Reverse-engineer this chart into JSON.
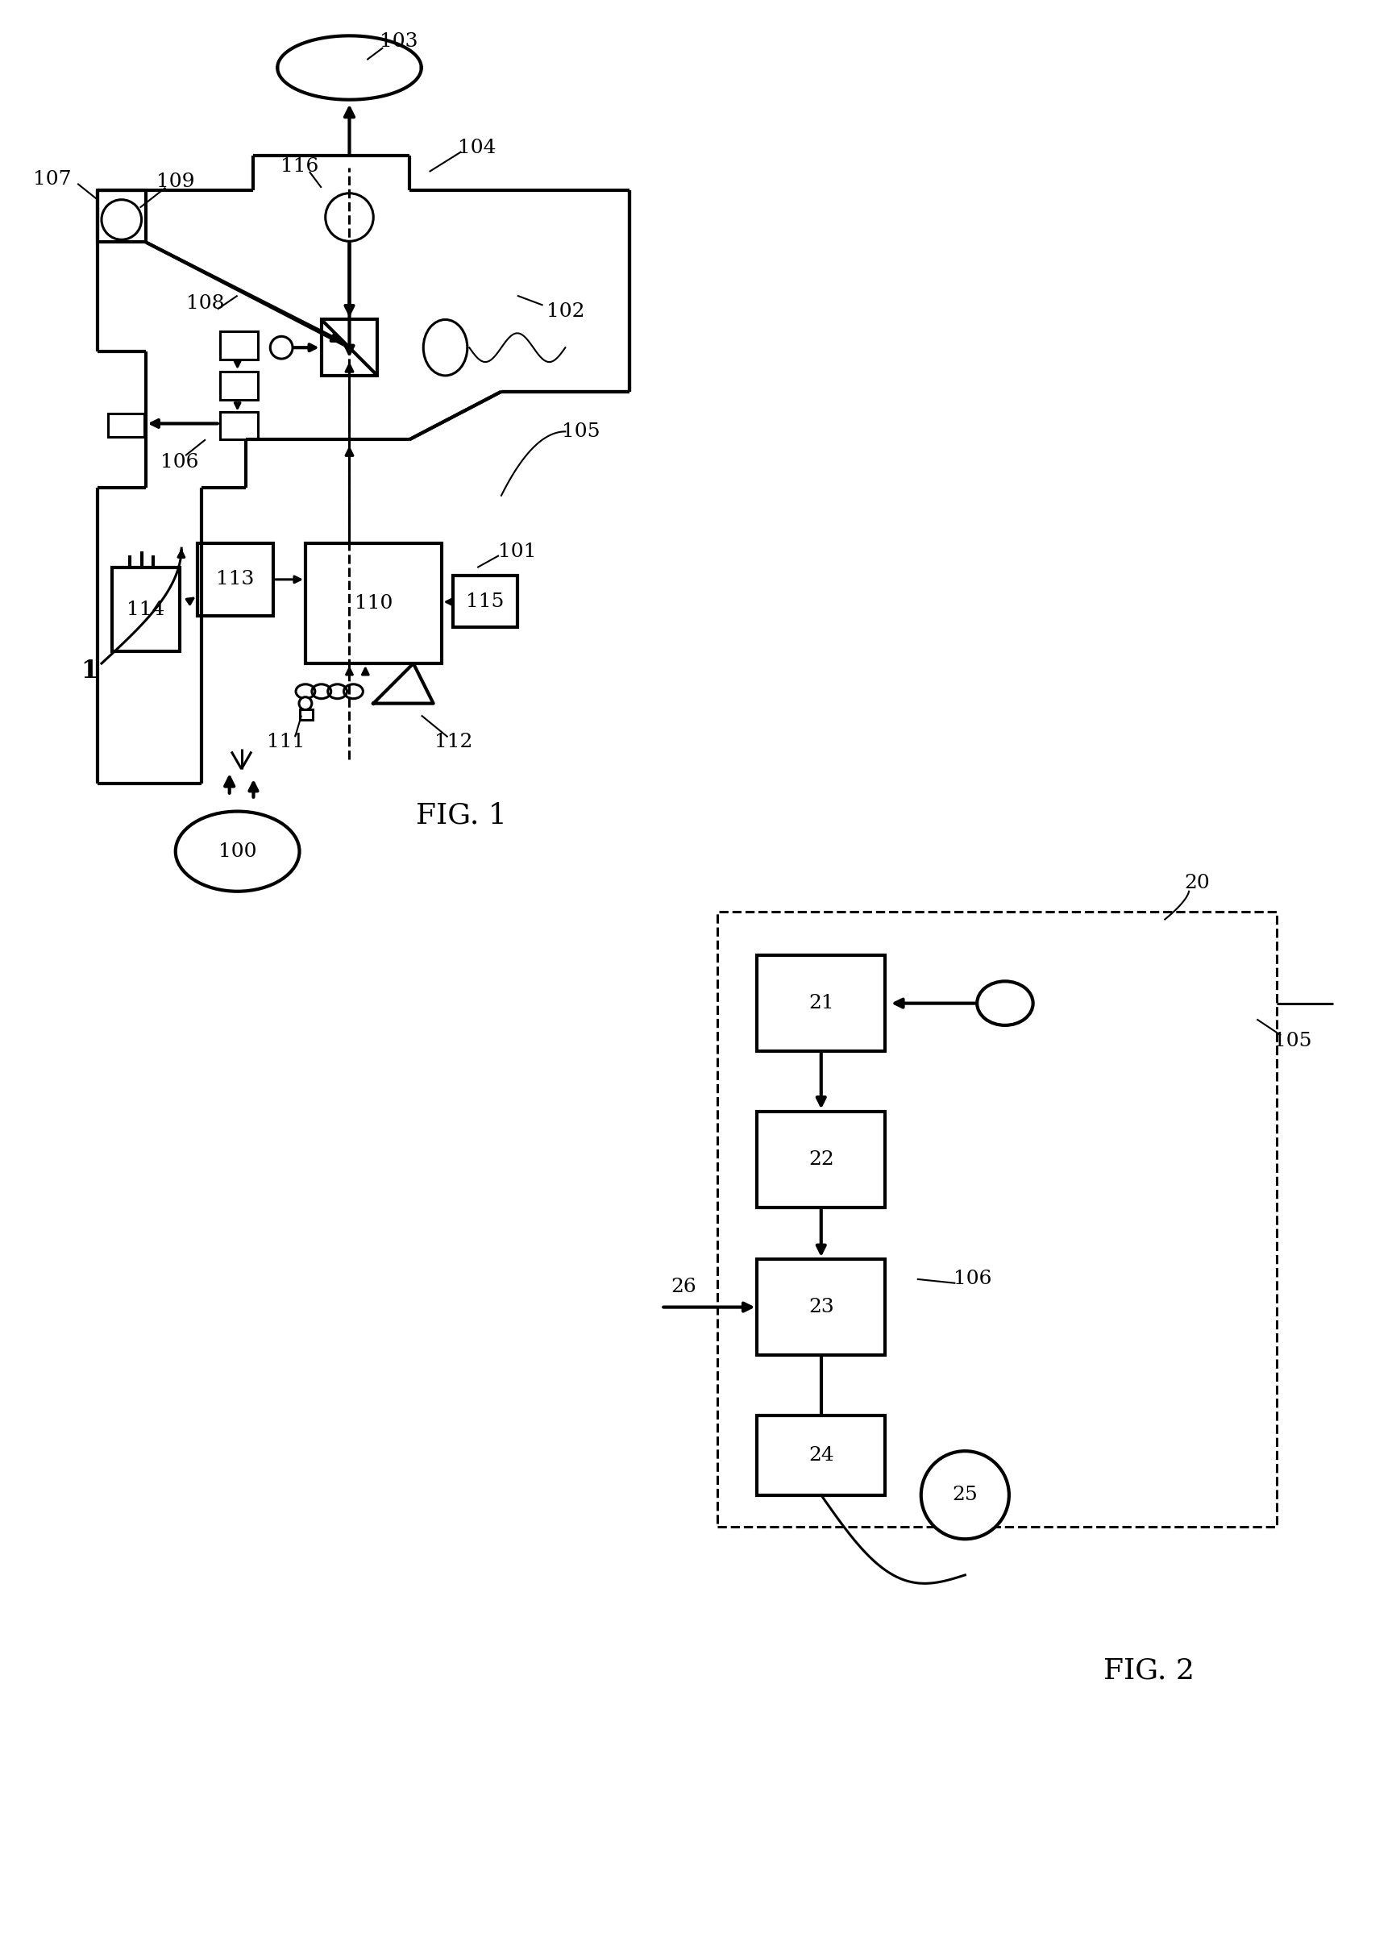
{
  "bg": "#ffffff",
  "lc": "#000000",
  "fig1_label": "FIG. 1",
  "fig2_label": "FIG. 2",
  "lw_thin": 1.5,
  "lw_med": 2.2,
  "lw_thick": 3.0,
  "fs_label": 20,
  "fs_ref": 18,
  "fs_fig": 26
}
